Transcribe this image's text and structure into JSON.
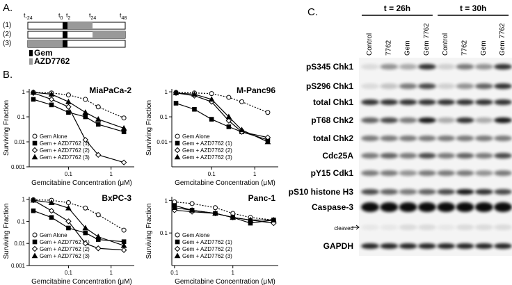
{
  "panel_a": {
    "label": "A.",
    "timepoints": [
      {
        "base": "t",
        "sub": "-24"
      },
      {
        "base": "t",
        "sub": "0"
      },
      {
        "base": "t",
        "sub": "2"
      },
      {
        "base": "t",
        "sub": "24"
      },
      {
        "base": "t",
        "sub": "48"
      }
    ],
    "rows": [
      "(1)",
      "(2)",
      "(3)"
    ],
    "legend": [
      "Gem",
      "AZD7762"
    ]
  },
  "panel_b": {
    "label": "B."
  },
  "chart_data": [
    {
      "type": "line",
      "title": "MiaPaCa-2",
      "xlabel": "Gemcitabine Concentration (μM)",
      "ylabel": "Surviving Fraction",
      "x": [
        0.015,
        0.04,
        0.1,
        0.25,
        0.5,
        2
      ],
      "xlim": [
        0.012,
        3.5
      ],
      "xticks": [
        0.1,
        1
      ],
      "ylim": [
        0.001,
        1.3
      ],
      "yticks": [
        0.001,
        0.01,
        0.1,
        1
      ],
      "log_x": true,
      "log_y": true,
      "legend": "lower left",
      "series": [
        {
          "name": "Gem Alone",
          "marker": "circle-open",
          "dashed": true,
          "values": [
            0.95,
            0.9,
            0.75,
            0.5,
            0.25,
            0.09
          ]
        },
        {
          "name": "Gem + AZD7762 (1)",
          "marker": "square",
          "values": [
            0.5,
            0.3,
            0.15,
            0.1,
            0.05,
            0.025
          ]
        },
        {
          "name": "Gem + AZD7762 (2)",
          "marker": "diamond-open",
          "values": [
            0.9,
            0.5,
            0.25,
            0.012,
            0.003,
            0.0015
          ]
        },
        {
          "name": "Gem + AZD7762 (3)",
          "marker": "triangle",
          "values": [
            0.95,
            0.8,
            0.4,
            0.15,
            0.08,
            0.035
          ]
        }
      ]
    },
    {
      "type": "line",
      "title": "M-Panc96",
      "xlabel": "Gemcitabine Concentration (μM)",
      "ylabel": "Surviving Fraction",
      "x": [
        0.015,
        0.04,
        0.1,
        0.25,
        0.5,
        2
      ],
      "xlim": [
        0.012,
        3.5
      ],
      "xticks": [
        0.1,
        1
      ],
      "ylim": [
        0.001,
        1.3
      ],
      "yticks": [
        0.01,
        0.1,
        1
      ],
      "log_x": true,
      "log_y": true,
      "legend": "lower left",
      "series": [
        {
          "name": "Gem Alone",
          "marker": "circle-open",
          "dashed": true,
          "values": [
            0.95,
            0.9,
            0.85,
            0.6,
            0.4,
            0.15
          ]
        },
        {
          "name": "Gem + AZD7762 (1)",
          "marker": "square",
          "values": [
            0.35,
            0.2,
            0.08,
            0.04,
            0.025,
            0.012
          ]
        },
        {
          "name": "Gem + AZD7762 (2)",
          "marker": "diamond-open",
          "values": [
            0.9,
            0.7,
            0.4,
            0.07,
            0.025,
            0.015
          ]
        },
        {
          "name": "Gem + AZD7762 (3)",
          "marker": "triangle",
          "values": [
            0.9,
            0.8,
            0.5,
            0.1,
            0.03,
            0.01
          ]
        }
      ]
    },
    {
      "type": "line",
      "title": "BxPC-3",
      "xlabel": "Gemcitabine Concentration (μM)",
      "ylabel": "Surviving Fraction",
      "x": [
        0.015,
        0.04,
        0.1,
        0.25,
        0.5,
        2
      ],
      "xlim": [
        0.012,
        3.5
      ],
      "xticks": [
        0.1,
        1
      ],
      "ylim": [
        0.001,
        1.3
      ],
      "yticks": [
        0.001,
        0.01,
        0.1,
        1
      ],
      "log_x": true,
      "log_y": true,
      "legend": "lower left",
      "series": [
        {
          "name": "Gem Alone",
          "marker": "circle-open",
          "dashed": true,
          "values": [
            0.95,
            0.9,
            0.7,
            0.4,
            0.2,
            0.04
          ]
        },
        {
          "name": "Gem + AZD7762 (1)",
          "marker": "square",
          "values": [
            0.3,
            0.15,
            0.05,
            0.03,
            0.015,
            0.012
          ]
        },
        {
          "name": "Gem + AZD7762 (2)",
          "marker": "diamond-open",
          "values": [
            0.9,
            0.3,
            0.1,
            0.01,
            0.006,
            0.005
          ]
        },
        {
          "name": "Gem + AZD7762 (3)",
          "marker": "triangle",
          "values": [
            0.9,
            0.7,
            0.4,
            0.05,
            0.02,
            0.008
          ]
        }
      ]
    },
    {
      "type": "line",
      "title": "Panc-1",
      "xlabel": "Gemcitabine Concentration (μM)",
      "ylabel": "Surviving Fraction",
      "x": [
        0.1,
        0.2,
        0.5,
        1,
        2,
        5
      ],
      "xlim": [
        0.09,
        6
      ],
      "xticks": [
        0.1,
        1
      ],
      "ylim": [
        0.01,
        1.3
      ],
      "yticks": [
        0.1,
        1
      ],
      "log_x": true,
      "log_y": true,
      "legend": "lower left",
      "series": [
        {
          "name": "Gem Alone",
          "marker": "circle-open",
          "dashed": true,
          "values": [
            0.9,
            0.8,
            0.6,
            0.4,
            0.3,
            0.25
          ]
        },
        {
          "name": "Gem + AZD7762 (1)",
          "marker": "square",
          "values": [
            0.7,
            0.5,
            0.4,
            0.3,
            0.2,
            0.25
          ]
        },
        {
          "name": "Gem + AZD7762 (2)",
          "marker": "diamond-open",
          "values": [
            0.5,
            0.45,
            0.4,
            0.3,
            0.25,
            0.2
          ]
        },
        {
          "name": "Gem + AZD7762 (3)",
          "marker": "triangle",
          "values": [
            0.6,
            0.5,
            0.4,
            0.3,
            0.25,
            0.25
          ]
        }
      ]
    }
  ],
  "panel_c": {
    "label": "C.",
    "groups": [
      {
        "label": "t = 26h",
        "lanes": [
          "Control",
          "7762",
          "Gem",
          "Gem 7762"
        ]
      },
      {
        "label": "t = 30h",
        "lanes": [
          "Control",
          "7762",
          "Gem",
          "Gem 7762"
        ]
      }
    ],
    "rows": [
      "pS345 Chk1",
      "pS296 Chk1",
      "total Chk1",
      "pT68 Chk2",
      "total Chk2",
      "Cdc25A",
      "pY15 Cdk1",
      "pS10 histone H3",
      "Caspase-3",
      "cleaved",
      "GAPDH"
    ]
  }
}
